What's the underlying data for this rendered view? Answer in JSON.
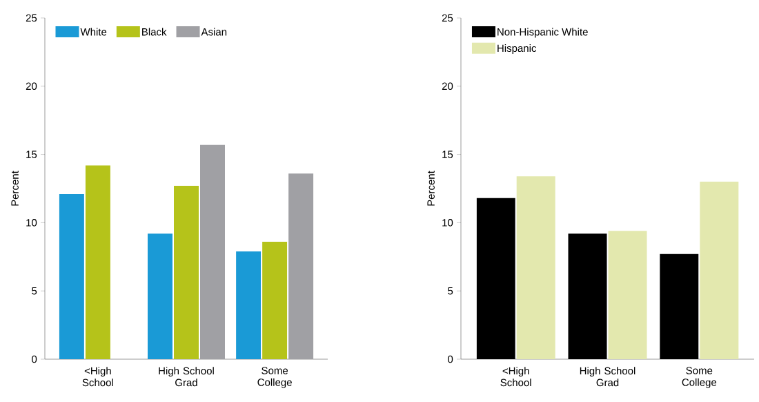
{
  "chart_data": [
    {
      "type": "bar",
      "ylabel": "Percent",
      "categories": [
        "<High School",
        "High School Grad",
        "Some College"
      ],
      "ylim": [
        0,
        25
      ],
      "yticks": [
        0,
        5,
        10,
        15,
        20,
        25
      ],
      "legend": "top left",
      "series": [
        {
          "name": "White",
          "color": "#1a9ad6",
          "values": [
            12.1,
            9.2,
            7.9
          ]
        },
        {
          "name": "Black",
          "color": "#b5c31a",
          "values": [
            14.2,
            12.7,
            8.6
          ]
        },
        {
          "name": "Asian",
          "color": "#a0a0a4",
          "values": [
            null,
            15.7,
            13.6
          ]
        }
      ]
    },
    {
      "type": "bar",
      "ylabel": "Percent",
      "categories": [
        "<High School",
        "High School Grad",
        "Some College"
      ],
      "ylim": [
        0,
        25
      ],
      "yticks": [
        0,
        5,
        10,
        15,
        20,
        25
      ],
      "legend": "top left",
      "series": [
        {
          "name": "Non-Hispanic White",
          "color": "#000000",
          "values": [
            11.8,
            9.2,
            7.7
          ]
        },
        {
          "name": "Hispanic",
          "color": "#e3e8ae",
          "values": [
            13.4,
            9.4,
            13.0
          ]
        }
      ]
    }
  ]
}
